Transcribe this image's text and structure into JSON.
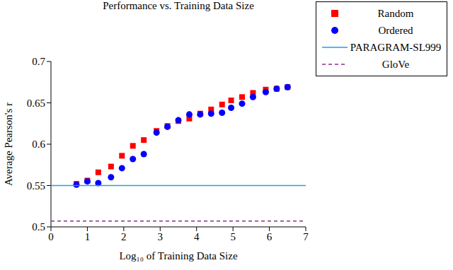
{
  "chart_data": {
    "type": "scatter",
    "title": "Performance vs. Training Data Size",
    "xlabel": "Log₁₀ of Training Data Size",
    "ylabel": "Average Pearson's r",
    "xlim": [
      0,
      7
    ],
    "xticks": [
      0,
      1,
      2,
      3,
      4,
      5,
      6,
      7
    ],
    "ylim": [
      0.5,
      0.7
    ],
    "yticks": [
      0.5,
      0.55,
      0.6,
      0.65,
      0.7
    ],
    "grid": false,
    "legend": "right",
    "series": [
      {
        "name": "Random",
        "type": "scatter",
        "marker": "square",
        "color": "#ff0000",
        "x": [
          0.7,
          1.0,
          1.3,
          1.65,
          1.95,
          2.25,
          2.55,
          2.9,
          3.2,
          3.5,
          3.8,
          4.1,
          4.4,
          4.7,
          4.95,
          5.25,
          5.55,
          5.9,
          6.2,
          6.5
        ],
        "values": [
          0.552,
          0.556,
          0.566,
          0.573,
          0.586,
          0.598,
          0.605,
          0.616,
          0.622,
          0.628,
          0.631,
          0.637,
          0.642,
          0.648,
          0.653,
          0.657,
          0.662,
          0.666,
          0.667,
          0.669
        ]
      },
      {
        "name": "Ordered",
        "type": "scatter",
        "marker": "circle",
        "color": "#0000ff",
        "x": [
          0.7,
          1.0,
          1.3,
          1.65,
          1.95,
          2.25,
          2.55,
          2.9,
          3.2,
          3.5,
          3.8,
          4.1,
          4.4,
          4.7,
          4.95,
          5.25,
          5.55,
          5.9,
          6.2,
          6.5
        ],
        "values": [
          0.551,
          0.555,
          0.553,
          0.56,
          0.571,
          0.582,
          0.588,
          0.614,
          0.621,
          0.629,
          0.636,
          0.636,
          0.637,
          0.638,
          0.644,
          0.649,
          0.657,
          0.663,
          0.667,
          0.669
        ]
      },
      {
        "name": "PARAGRAM-SL999",
        "type": "line",
        "line_style": "solid",
        "color": "#1ba3e0",
        "x": [
          0,
          7
        ],
        "values": [
          0.55,
          0.55
        ]
      },
      {
        "name": "GloVe",
        "type": "line",
        "line_style": "dashed",
        "color": "#8b2f8b",
        "x": [
          0,
          7
        ],
        "values": [
          0.507,
          0.507
        ]
      }
    ]
  }
}
